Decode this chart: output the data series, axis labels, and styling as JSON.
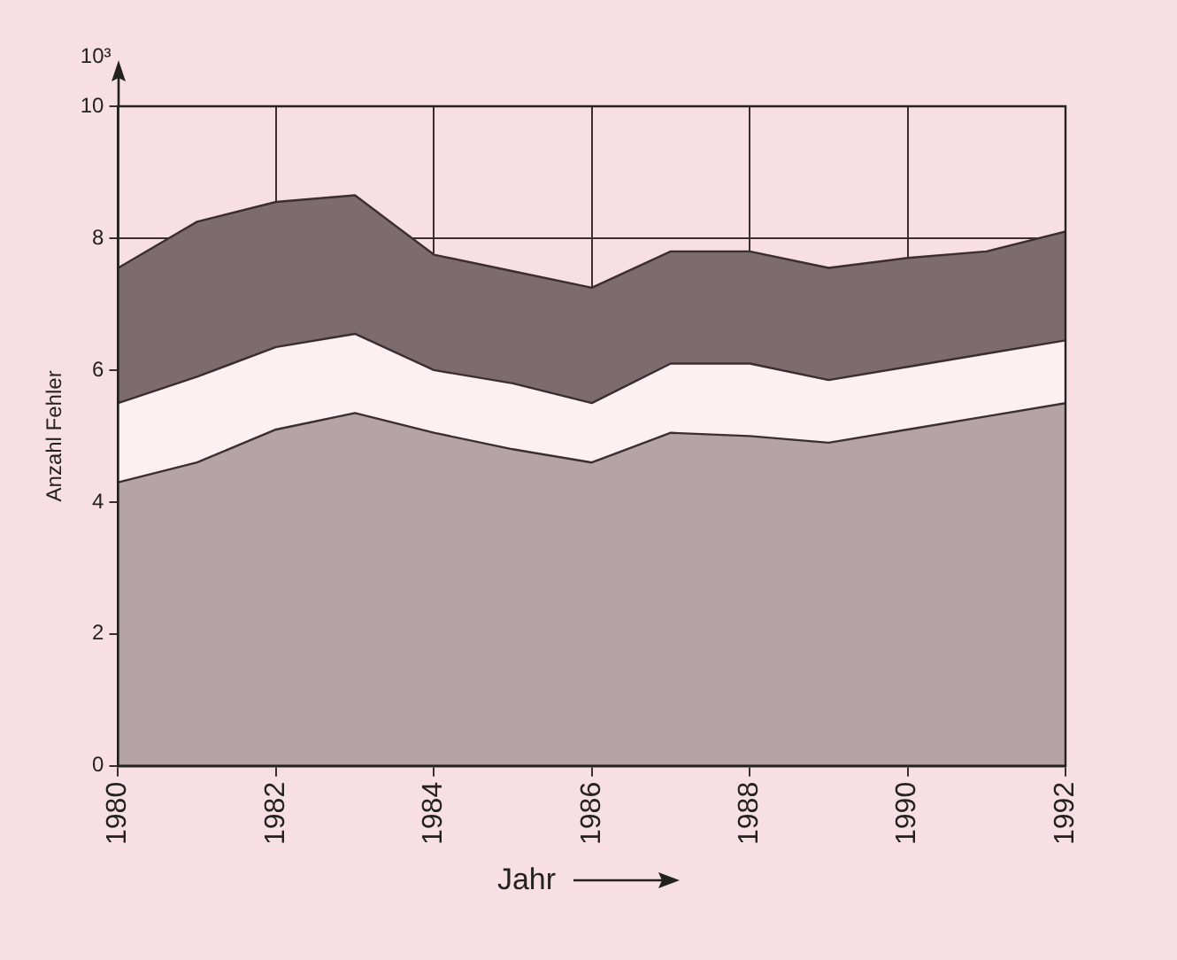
{
  "chart_data": {
    "type": "area",
    "stacked": true,
    "xlabel": "Jahr",
    "ylabel": "Anzahl Fehler",
    "annotations": [
      "10³"
    ],
    "x": [
      1980,
      1981,
      1982,
      1983,
      1984,
      1985,
      1986,
      1987,
      1988,
      1989,
      1990,
      1991,
      1992
    ],
    "series": [
      {
        "color": "#b5a3a6",
        "values": [
          4.3,
          4.6,
          5.1,
          5.35,
          5.05,
          4.8,
          4.6,
          5.05,
          5.0,
          4.9,
          5.1,
          5.3,
          5.5
        ]
      },
      {
        "color": "#fdf0f2",
        "values": [
          1.2,
          1.3,
          1.25,
          1.2,
          0.95,
          1.0,
          0.9,
          1.05,
          1.1,
          0.95,
          0.95,
          0.95,
          0.95
        ]
      },
      {
        "color": "#7d6b6e",
        "values": [
          2.05,
          2.35,
          2.2,
          2.1,
          1.75,
          1.7,
          1.75,
          1.7,
          1.7,
          1.7,
          1.65,
          1.55,
          1.65
        ]
      }
    ],
    "xlim": [
      1980,
      1992
    ],
    "xticks": [
      1980,
      1982,
      1984,
      1986,
      1988,
      1990,
      1992
    ],
    "ylim": [
      0,
      10
    ],
    "yticks": [
      0,
      2,
      4,
      6,
      8,
      10
    ],
    "grid": true,
    "legend": false
  }
}
